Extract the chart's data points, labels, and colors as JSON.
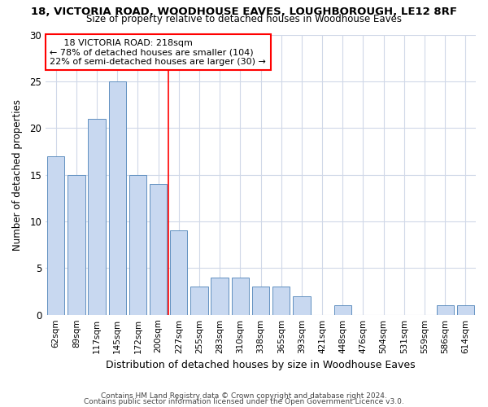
{
  "title1": "18, VICTORIA ROAD, WOODHOUSE EAVES, LOUGHBOROUGH, LE12 8RF",
  "title2": "Size of property relative to detached houses in Woodhouse Eaves",
  "xlabel": "Distribution of detached houses by size in Woodhouse Eaves",
  "ylabel": "Number of detached properties",
  "categories": [
    "62sqm",
    "89sqm",
    "117sqm",
    "145sqm",
    "172sqm",
    "200sqm",
    "227sqm",
    "255sqm",
    "283sqm",
    "310sqm",
    "338sqm",
    "365sqm",
    "393sqm",
    "421sqm",
    "448sqm",
    "476sqm",
    "504sqm",
    "531sqm",
    "559sqm",
    "586sqm",
    "614sqm"
  ],
  "values": [
    17,
    15,
    21,
    25,
    15,
    14,
    9,
    3,
    4,
    4,
    3,
    3,
    2,
    0,
    1,
    0,
    0,
    0,
    0,
    1,
    1
  ],
  "bar_color": "#c8d8f0",
  "bar_edge_color": "#6090c0",
  "ylim": [
    0,
    30
  ],
  "vline_x_index": 5.5,
  "annotation_line1": "     18 VICTORIA ROAD: 218sqm",
  "annotation_line2": "← 78% of detached houses are smaller (104)",
  "annotation_line3": "22% of semi-detached houses are larger (30) →",
  "footnote1": "Contains HM Land Registry data © Crown copyright and database right 2024.",
  "footnote2": "Contains public sector information licensed under the Open Government Licence v3.0.",
  "background_color": "#ffffff",
  "grid_color": "#d0d8e8",
  "title1_fontsize": 9.5,
  "title2_fontsize": 8.5
}
